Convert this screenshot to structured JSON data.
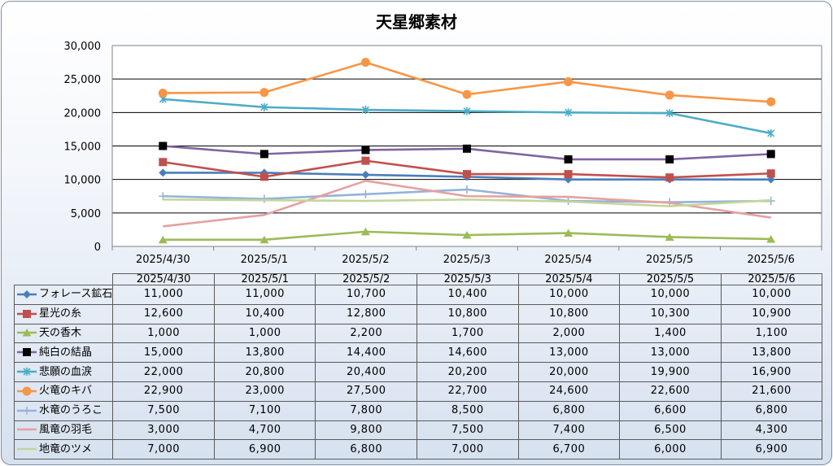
{
  "chart_data": {
    "type": "line",
    "title": "天星郷素材",
    "categories": [
      "2025/4/30",
      "2025/5/1",
      "2025/5/2",
      "2025/5/3",
      "2025/5/4",
      "2025/5/5",
      "2025/5/6"
    ],
    "ylim": [
      0,
      30000
    ],
    "yticks": [
      "0",
      "5,000",
      "10,000",
      "15,000",
      "20,000",
      "25,000",
      "30,000"
    ],
    "grid": true,
    "legend": "table-left",
    "series": [
      {
        "name": "フォレース鉱石",
        "color": "#4a7ebb",
        "marker": "diamond",
        "values": [
          11000,
          11000,
          10700,
          10400,
          10000,
          10000,
          10000
        ],
        "labels": [
          "11,000",
          "11,000",
          "10,700",
          "10,400",
          "10,000",
          "10,000",
          "10,000"
        ]
      },
      {
        "name": "星光の糸",
        "color": "#c0504d",
        "marker": "square",
        "values": [
          12600,
          10400,
          12800,
          10800,
          10800,
          10300,
          10900
        ],
        "labels": [
          "12,600",
          "10,400",
          "12,800",
          "10,800",
          "10,800",
          "10,300",
          "10,900"
        ]
      },
      {
        "name": "天の香木",
        "color": "#9bbb59",
        "marker": "triangle",
        "values": [
          1000,
          1000,
          2200,
          1700,
          2000,
          1400,
          1100
        ],
        "labels": [
          "1,000",
          "1,000",
          "2,200",
          "1,700",
          "2,000",
          "1,400",
          "1,100"
        ]
      },
      {
        "name": "純白の結晶",
        "color": "#8064a2",
        "marker": "blacksquare",
        "values": [
          15000,
          13800,
          14400,
          14600,
          13000,
          13000,
          13800
        ],
        "labels": [
          "15,000",
          "13,800",
          "14,400",
          "14,600",
          "13,000",
          "13,000",
          "13,800"
        ]
      },
      {
        "name": "悲願の血涙",
        "color": "#4bacc6",
        "marker": "star",
        "values": [
          22000,
          20800,
          20400,
          20200,
          20000,
          19900,
          16900
        ],
        "labels": [
          "22,000",
          "20,800",
          "20,400",
          "20,200",
          "20,000",
          "19,900",
          "16,900"
        ]
      },
      {
        "name": "火竜のキバ",
        "color": "#f79646",
        "marker": "circle",
        "values": [
          22900,
          23000,
          27500,
          22700,
          24600,
          22600,
          21600
        ],
        "labels": [
          "22,900",
          "23,000",
          "27,500",
          "22,700",
          "24,600",
          "22,600",
          "21,600"
        ]
      },
      {
        "name": "水竜のうろこ",
        "color": "#95b3d7",
        "marker": "plus",
        "values": [
          7500,
          7100,
          7800,
          8500,
          6800,
          6600,
          6800
        ],
        "labels": [
          "7,500",
          "7,100",
          "7,800",
          "8,500",
          "6,800",
          "6,600",
          "6,800"
        ]
      },
      {
        "name": "風竜の羽毛",
        "color": "#e6a0a0",
        "marker": "none",
        "values": [
          3000,
          4700,
          9800,
          7500,
          7400,
          6500,
          4300
        ],
        "labels": [
          "3,000",
          "4,700",
          "9,800",
          "7,500",
          "7,400",
          "6,500",
          "4,300"
        ]
      },
      {
        "name": "地竜のツメ",
        "color": "#c3d69b",
        "marker": "none",
        "values": [
          7000,
          6900,
          6800,
          7000,
          6700,
          6000,
          6900
        ],
        "labels": [
          "7,000",
          "6,900",
          "6,800",
          "7,000",
          "6,700",
          "6,000",
          "6,900"
        ]
      }
    ]
  }
}
